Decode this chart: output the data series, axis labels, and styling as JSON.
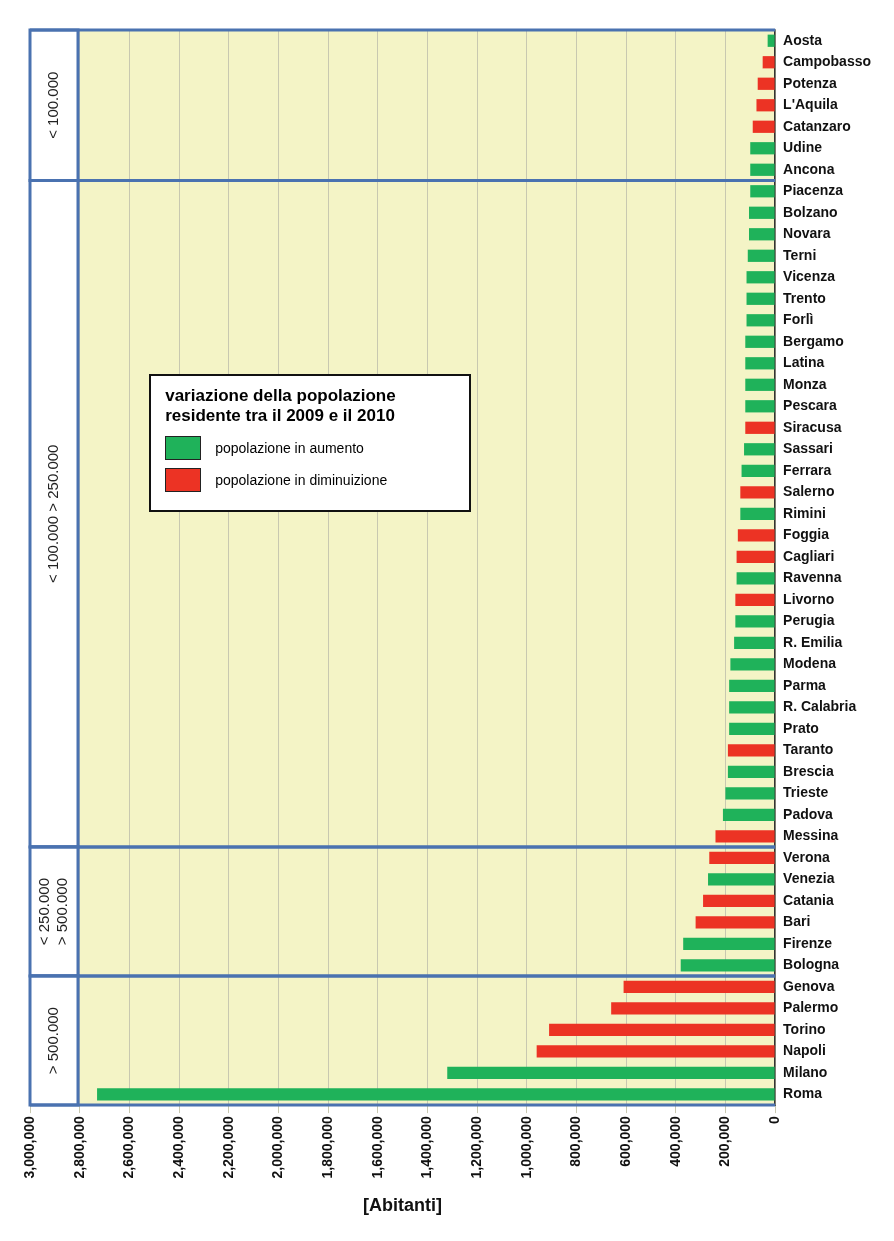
{
  "chart_data": {
    "type": "bar",
    "orientation": "horizontal",
    "xlabel": "[Abitanti]",
    "legend_title": "variazione della popolazione residente tra il 2009 e il 2010",
    "categories": [
      "Aosta",
      "Campobasso",
      "Potenza",
      "L'Aquila",
      "Catanzaro",
      "Udine",
      "Ancona",
      "Piacenza",
      "Bolzano",
      "Novara",
      "Terni",
      "Vicenza",
      "Trento",
      "Forlì",
      "Bergamo",
      "Latina",
      "Monza",
      "Pescara",
      "Siracusa",
      "Sassari",
      "Ferrara",
      "Salerno",
      "Rimini",
      "Foggia",
      "Cagliari",
      "Ravenna",
      "Livorno",
      "Perugia",
      "R. Emilia",
      "Modena",
      "Parma",
      "R. Calabria",
      "Prato",
      "Taranto",
      "Brescia",
      "Trieste",
      "Padova",
      "Messina",
      "Verona",
      "Venezia",
      "Catania",
      "Bari",
      "Firenze",
      "Bologna",
      "Genova",
      "Palermo",
      "Torino",
      "Napoli",
      "Milano",
      "Roma"
    ],
    "series": [
      {
        "name": "popolazione in aumento",
        "color": "#1fb25a",
        "values": [
          30000,
          null,
          null,
          null,
          null,
          100000,
          100000,
          100000,
          105000,
          105000,
          110000,
          115000,
          115000,
          115000,
          120000,
          120000,
          120000,
          120000,
          null,
          125000,
          135000,
          null,
          140000,
          null,
          null,
          155000,
          null,
          160000,
          165000,
          180000,
          185000,
          185000,
          185000,
          null,
          190000,
          200000,
          210000,
          null,
          null,
          270000,
          null,
          null,
          370000,
          380000,
          null,
          null,
          null,
          null,
          1320000,
          2730000
        ]
      },
      {
        "name": "popolazione in diminuizione",
        "color": "#ec3324",
        "values": [
          null,
          50000,
          70000,
          75000,
          90000,
          null,
          null,
          null,
          null,
          null,
          null,
          null,
          null,
          null,
          null,
          null,
          null,
          null,
          120000,
          null,
          null,
          140000,
          null,
          150000,
          155000,
          null,
          160000,
          null,
          null,
          null,
          null,
          null,
          null,
          190000,
          null,
          null,
          null,
          240000,
          265000,
          null,
          290000,
          320000,
          null,
          null,
          610000,
          660000,
          910000,
          960000,
          null,
          null
        ]
      }
    ],
    "xlim": [
      3000000,
      0
    ],
    "xticks": [
      {
        "value": 3000000,
        "label": "3,000,000"
      },
      {
        "value": 2800000,
        "label": "2,800,000"
      },
      {
        "value": 2600000,
        "label": "2,600,000"
      },
      {
        "value": 2400000,
        "label": "2,400,000"
      },
      {
        "value": 2200000,
        "label": "2,200,000"
      },
      {
        "value": 2000000,
        "label": "2,000,000"
      },
      {
        "value": 1800000,
        "label": "1,800,000"
      },
      {
        "value": 1600000,
        "label": "1,600,000"
      },
      {
        "value": 1400000,
        "label": "1,400,000"
      },
      {
        "value": 1200000,
        "label": "1,200,000"
      },
      {
        "value": 1000000,
        "label": "1,000,000"
      },
      {
        "value": 800000,
        "label": "800,000"
      },
      {
        "value": 600000,
        "label": "600,000"
      },
      {
        "value": 400000,
        "label": "400,000"
      },
      {
        "value": 200000,
        "label": "200,000"
      },
      0
    ],
    "bands": [
      {
        "axis": "y",
        "from": "Aosta",
        "to": "Ancona",
        "label": "< 100.000"
      },
      {
        "axis": "y",
        "from": "Piacenza",
        "to": "Messina",
        "label": "< 100.000 > 250.000"
      },
      {
        "axis": "y",
        "from": "Verona",
        "to": "Bologna",
        "label": "< 250.000 > 500.000"
      },
      {
        "axis": "y",
        "from": "Genova",
        "to": "Roma",
        "label": "> 500.000"
      }
    ],
    "grid": "x",
    "legend": "left"
  }
}
